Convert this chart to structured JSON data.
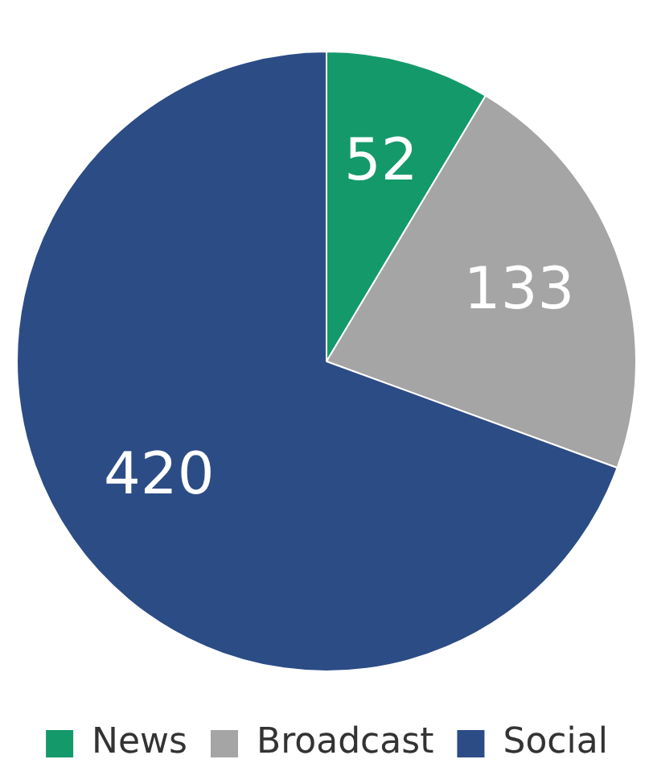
{
  "chart_data": {
    "type": "pie",
    "categories": [
      "News",
      "Broadcast",
      "Social"
    ],
    "values": [
      52,
      133,
      420
    ],
    "colors": [
      "#14996b",
      "#a5a5a5",
      "#2c4c86"
    ],
    "data_labels": true,
    "legend": "bottom"
  }
}
